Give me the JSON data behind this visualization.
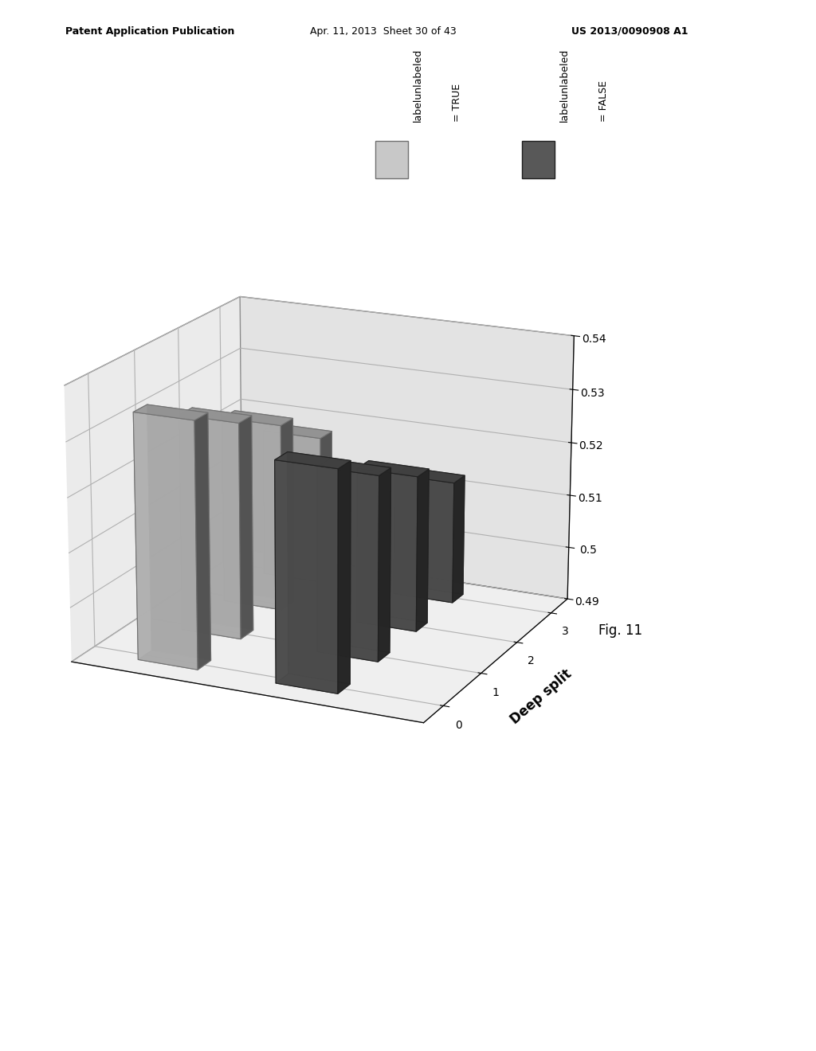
{
  "ylim": [
    0.49,
    0.54
  ],
  "yticks": [
    0.49,
    0.5,
    0.51,
    0.52,
    0.53,
    0.54
  ],
  "zticks": [
    0,
    1,
    2,
    3
  ],
  "series_true_color": "#c8c8c8",
  "series_false_color": "#585858",
  "series_true_edge": "#707070",
  "series_false_edge": "#202020",
  "true_values": [
    0.535,
    0.53,
    0.525,
    0.518
  ],
  "false_values": [
    0.53,
    0.524,
    0.519,
    0.513
  ],
  "pane_x_color": "#d8d8d8",
  "pane_y_color": "#c8c8c8",
  "pane_z_color": "#e0e0e0",
  "background_color": "#ffffff",
  "deep_split_label": "Deep split",
  "legend_true_label1": "labelunlabeled",
  "legend_true_label2": "= TRUE",
  "legend_false_label1": "labelunlabeled",
  "legend_false_label2": "= FALSE",
  "fig11": "Fig. 11",
  "header_left": "Patent Application Publication",
  "header_mid": "Apr. 11, 2013  Sheet 30 of 43",
  "header_right": "US 2013/0090908 A1"
}
